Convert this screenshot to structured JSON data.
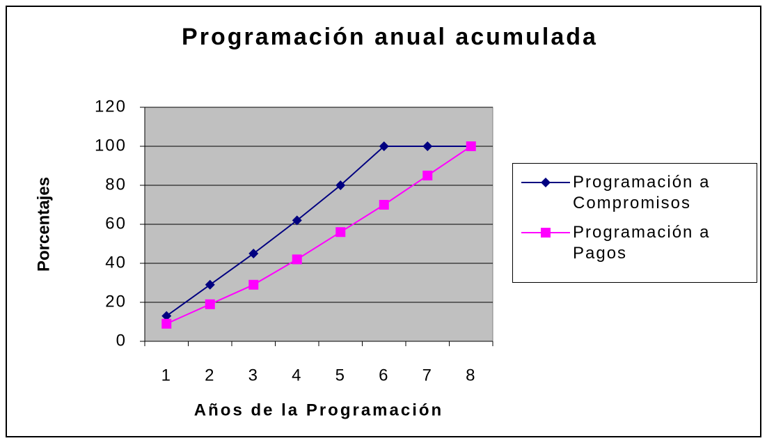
{
  "chart_data": {
    "type": "line",
    "title": "Programación anual acumulada",
    "x_label": "Años de la Programación",
    "y_label": "Porcentajes",
    "categories": [
      "1",
      "2",
      "3",
      "4",
      "5",
      "6",
      "7",
      "8"
    ],
    "series": [
      {
        "name": "Programación a Compromisos",
        "color": "#000080",
        "marker": "diamond",
        "values": [
          13,
          29,
          45,
          62,
          80,
          100,
          100,
          100
        ]
      },
      {
        "name": "Programación a Pagos",
        "color": "#ff00ff",
        "marker": "square",
        "values": [
          9,
          19,
          29,
          42,
          56,
          70,
          85,
          100
        ]
      }
    ],
    "ylim": [
      0,
      120
    ],
    "yticks": [
      0,
      20,
      40,
      60,
      80,
      100,
      120
    ],
    "grid": true,
    "legend": "right"
  }
}
